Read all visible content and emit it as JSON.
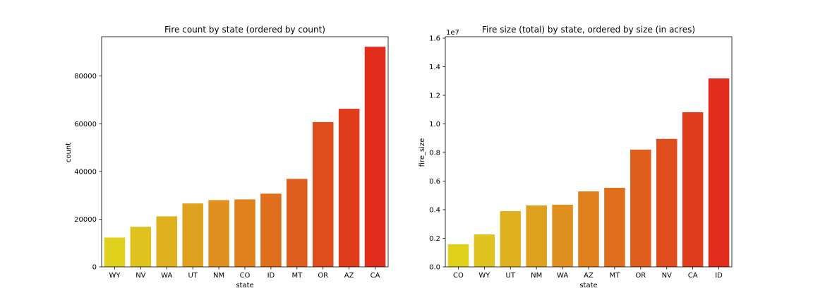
{
  "chart_data": [
    {
      "type": "bar",
      "title": "Fire count by state (ordered by count)",
      "xlabel": "state",
      "ylabel": "count",
      "ylim": [
        0,
        96500
      ],
      "yticks": [
        0,
        20000,
        40000,
        60000,
        80000
      ],
      "ytick_labels": [
        "0",
        "20000",
        "40000",
        "60000",
        "80000"
      ],
      "offset_label": "",
      "categories": [
        "WY",
        "NV",
        "WA",
        "UT",
        "NM",
        "CO",
        "ID",
        "MT",
        "OR",
        "AZ",
        "CA"
      ],
      "values": [
        12300,
        16800,
        21200,
        26600,
        28000,
        28300,
        30700,
        36900,
        60700,
        66300,
        92300
      ],
      "colors": [
        "#dfd01c",
        "#dfc21d",
        "#dfb11e",
        "#dfa01e",
        "#df901e",
        "#df801d",
        "#df6f1d",
        "#e05e1d",
        "#e04d1d",
        "#e03d1d",
        "#e12c1c"
      ],
      "grid": false
    },
    {
      "type": "bar",
      "title": "Fire size (total) by state, ordered by size (in acres)",
      "xlabel": "state",
      "ylabel": "fire_size",
      "ylim": [
        0,
        16100000
      ],
      "yticks": [
        0,
        2000000,
        4000000,
        6000000,
        8000000,
        10000000,
        12000000,
        14000000,
        16000000
      ],
      "ytick_labels": [
        "0.0",
        "0.2",
        "0.4",
        "0.6",
        "0.8",
        "1.0",
        "1.2",
        "1.4",
        "1.6"
      ],
      "offset_label": "1e7",
      "categories": [
        "CO",
        "WY",
        "UT",
        "NM",
        "WA",
        "AZ",
        "MT",
        "OR",
        "NV",
        "CA",
        "ID"
      ],
      "values": [
        1580000,
        2270000,
        3900000,
        4300000,
        4350000,
        5280000,
        5530000,
        8200000,
        8950000,
        10820000,
        13180000
      ],
      "colors": [
        "#dfd01c",
        "#dfc21d",
        "#dfb11e",
        "#dfa01e",
        "#df901e",
        "#df801d",
        "#df6f1d",
        "#e05e1d",
        "#e04d1d",
        "#e03d1d",
        "#e12c1c"
      ],
      "grid": false
    }
  ]
}
